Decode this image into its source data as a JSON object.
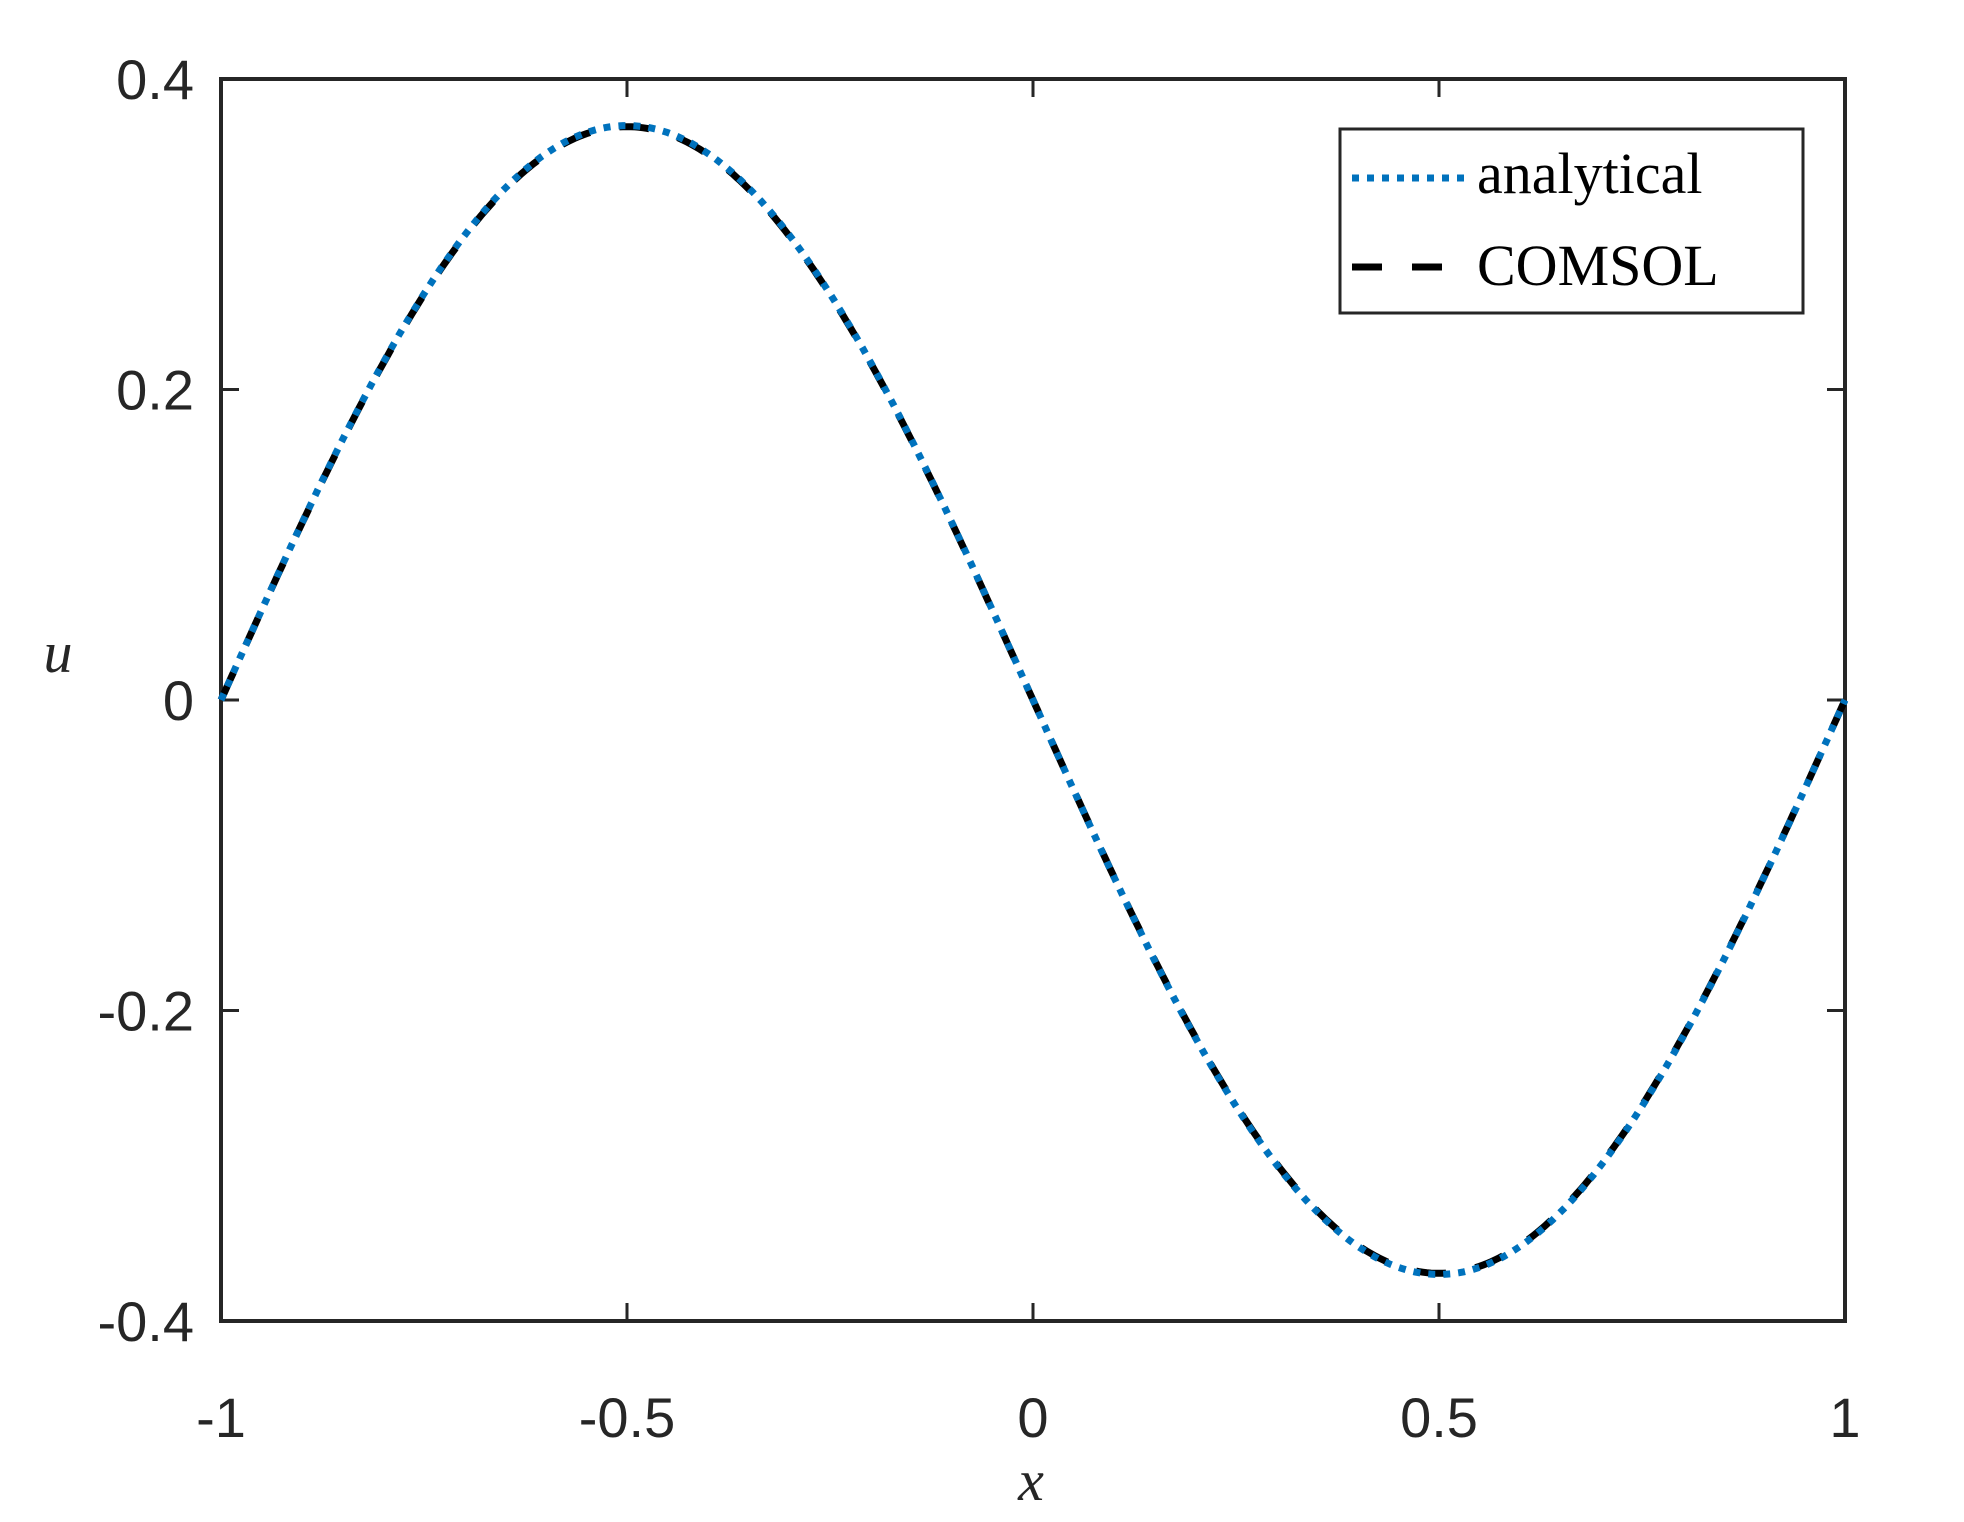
{
  "chart_data": {
    "type": "line",
    "title": "",
    "xlabel": "x",
    "ylabel": "u",
    "xlim": [
      -1,
      1
    ],
    "ylim": [
      -0.4,
      0.4
    ],
    "xticks": [
      -1,
      -0.5,
      0,
      0.5,
      1
    ],
    "xtick_labels": [
      "-1",
      "-0.5",
      "0",
      "0.5",
      "1"
    ],
    "yticks": [
      -0.4,
      -0.2,
      0,
      0.2,
      0.4
    ],
    "ytick_labels": [
      "-0.4",
      "-0.2",
      "0",
      "0.2",
      "0.4"
    ],
    "grid": false,
    "legend_position": "upper right",
    "x": [
      -1.0,
      -0.9,
      -0.8,
      -0.7,
      -0.6,
      -0.5,
      -0.4,
      -0.3,
      -0.2,
      -0.1,
      0.0,
      0.1,
      0.2,
      0.3,
      0.4,
      0.5,
      0.6,
      0.7,
      0.8,
      0.9,
      1.0
    ],
    "series": [
      {
        "name": "analytical",
        "color": "#0072BD",
        "style": "dotted",
        "values": [
          0.0,
          0.1143,
          0.2175,
          0.2993,
          0.3519,
          0.37,
          0.3519,
          0.2993,
          0.2175,
          0.1143,
          0.0,
          -0.1143,
          -0.2175,
          -0.2993,
          -0.3519,
          -0.37,
          -0.3519,
          -0.2993,
          -0.2175,
          -0.1143,
          0.0
        ]
      },
      {
        "name": "COMSOL",
        "color": "#000000",
        "style": "dashed",
        "values": [
          0.0,
          0.114,
          0.217,
          0.2987,
          0.3512,
          0.3693,
          0.3512,
          0.2987,
          0.217,
          0.114,
          0.0,
          -0.114,
          -0.217,
          -0.2987,
          -0.3512,
          -0.3693,
          -0.3512,
          -0.2987,
          -0.217,
          -0.114,
          0.0
        ]
      }
    ]
  },
  "legend": {
    "items": [
      {
        "label": "analytical"
      },
      {
        "label": "COMSOL"
      }
    ]
  },
  "colors": {
    "axes": "#262626",
    "analytical": "#0072BD",
    "comsol": "#000000"
  }
}
